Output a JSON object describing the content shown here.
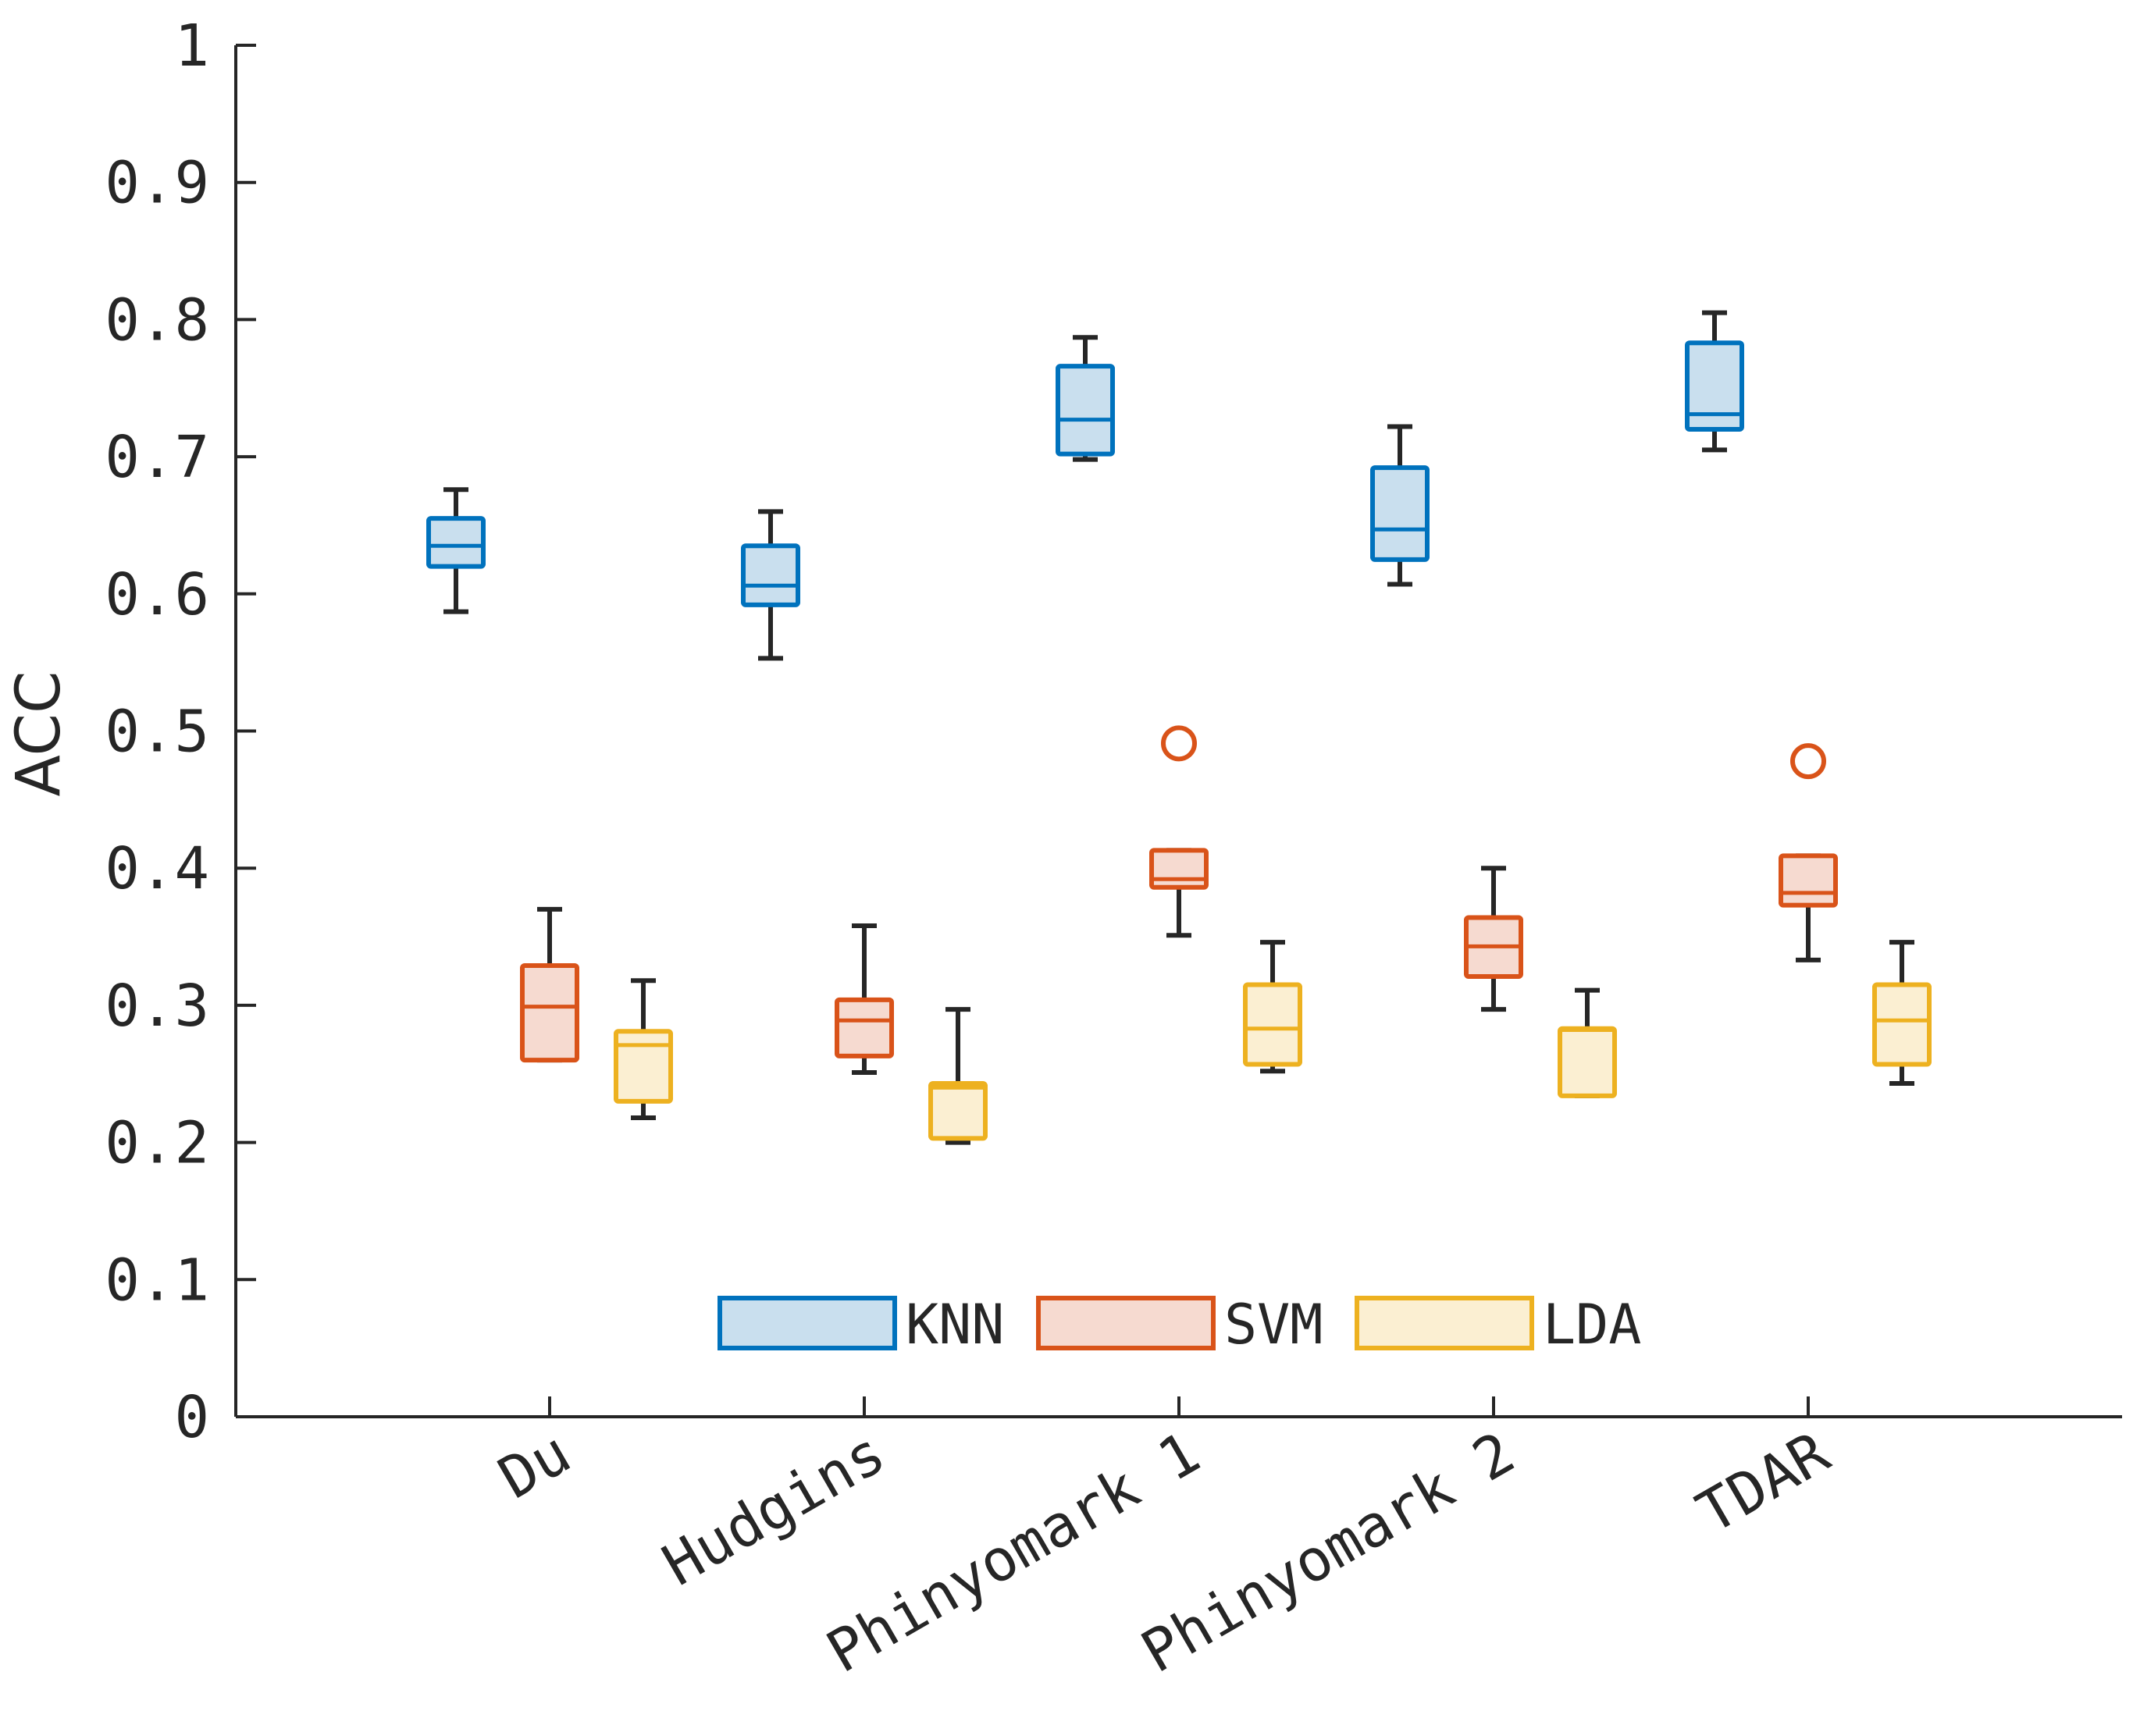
{
  "chart_data": {
    "type": "boxplot",
    "title": "",
    "xlabel": "",
    "ylabel": "ACC",
    "ylim": [
      0,
      1
    ],
    "yticks": [
      "0",
      "0.1",
      "0.2",
      "0.3",
      "0.4",
      "0.5",
      "0.6",
      "0.7",
      "0.8",
      "0.9",
      "1"
    ],
    "grid": false,
    "legend_position": "bottom-center",
    "categories": [
      "Du",
      "Hudgins",
      "Phinyomark 1",
      "Phinyomark 2",
      "TDAR"
    ],
    "series": [
      {
        "name": "KNN",
        "color": "#0072BD",
        "fill": "#C9DFEE",
        "boxes": [
          {
            "min": 0.587,
            "q1": 0.62,
            "median": 0.635,
            "q3": 0.655,
            "max": 0.676,
            "outliers": []
          },
          {
            "min": 0.553,
            "q1": 0.592,
            "median": 0.606,
            "q3": 0.635,
            "max": 0.66,
            "outliers": []
          },
          {
            "min": 0.698,
            "q1": 0.702,
            "median": 0.727,
            "q3": 0.766,
            "max": 0.787,
            "outliers": []
          },
          {
            "min": 0.607,
            "q1": 0.625,
            "median": 0.647,
            "q3": 0.692,
            "max": 0.722,
            "outliers": []
          },
          {
            "min": 0.705,
            "q1": 0.72,
            "median": 0.731,
            "q3": 0.783,
            "max": 0.805,
            "outliers": []
          }
        ]
      },
      {
        "name": "SVM",
        "color": "#D95319",
        "fill": "#F6DAD0",
        "boxes": [
          {
            "min": 0.26,
            "q1": 0.26,
            "median": 0.299,
            "q3": 0.329,
            "max": 0.37,
            "outliers": []
          },
          {
            "min": 0.251,
            "q1": 0.263,
            "median": 0.289,
            "q3": 0.304,
            "max": 0.358,
            "outliers": []
          },
          {
            "min": 0.351,
            "q1": 0.386,
            "median": 0.392,
            "q3": 0.413,
            "max": 0.413,
            "outliers": [
              0.491
            ]
          },
          {
            "min": 0.297,
            "q1": 0.321,
            "median": 0.343,
            "q3": 0.364,
            "max": 0.4,
            "outliers": []
          },
          {
            "min": 0.333,
            "q1": 0.373,
            "median": 0.382,
            "q3": 0.409,
            "max": 0.409,
            "outliers": [
              0.478
            ]
          }
        ]
      },
      {
        "name": "LDA",
        "color": "#EDB120",
        "fill": "#FBEFD2",
        "boxes": [
          {
            "min": 0.218,
            "q1": 0.23,
            "median": 0.271,
            "q3": 0.281,
            "max": 0.318,
            "outliers": []
          },
          {
            "min": 0.2,
            "q1": 0.203,
            "median": 0.24,
            "q3": 0.243,
            "max": 0.297,
            "outliers": []
          },
          {
            "min": 0.252,
            "q1": 0.257,
            "median": 0.283,
            "q3": 0.315,
            "max": 0.346,
            "outliers": []
          },
          {
            "min": 0.234,
            "q1": 0.234,
            "median": 0.282,
            "q3": 0.283,
            "max": 0.311,
            "outliers": []
          },
          {
            "min": 0.243,
            "q1": 0.257,
            "median": 0.289,
            "q3": 0.315,
            "max": 0.346,
            "outliers": []
          }
        ]
      }
    ]
  }
}
